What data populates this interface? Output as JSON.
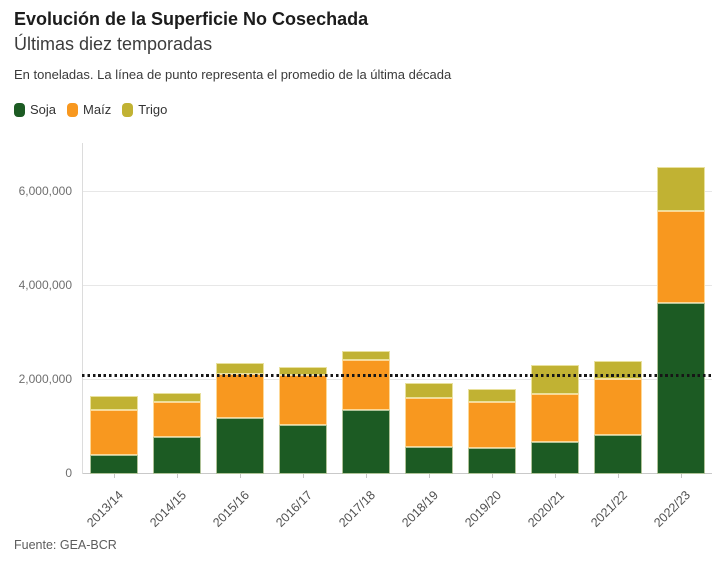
{
  "header": {
    "title": "Evolución de la Superficie No Cosechada",
    "subtitle": "Últimas diez temporadas",
    "description": "En toneladas. La línea de punto representa el promedio de la última década"
  },
  "legend": {
    "items": [
      {
        "label": "Soja",
        "color": "#1c5b23"
      },
      {
        "label": "Maíz",
        "color": "#f8981f"
      },
      {
        "label": "Trigo",
        "color": "#c1b233"
      }
    ]
  },
  "footer": {
    "source": "Fuente: GEA-BCR"
  },
  "colors": {
    "soja": "#1c5b23",
    "maiz": "#f8981f",
    "trigo": "#c1b233",
    "average_line": "#161616",
    "gridline": "#e7e7e7"
  },
  "chart_data": {
    "type": "bar",
    "stacked": true,
    "title": "Evolución de la Superficie No Cosechada",
    "subtitle": "Últimas diez temporadas",
    "units": "toneladas",
    "categories": [
      "2013/14",
      "2014/15",
      "2015/16",
      "2016/17",
      "2017/18",
      "2018/19",
      "2019/20",
      "2020/21",
      "2021/22",
      "2022/23"
    ],
    "series": [
      {
        "name": "Soja",
        "color": "#1c5b23",
        "values": [
          400000,
          790000,
          1190000,
          1040000,
          1350000,
          580000,
          550000,
          690000,
          830000,
          3630000
        ]
      },
      {
        "name": "Maíz",
        "color": "#f8981f",
        "values": [
          970000,
          750000,
          935000,
          1060000,
          1070000,
          1030000,
          985000,
          1020000,
          1200000,
          1970000
        ]
      },
      {
        "name": "Trigo",
        "color": "#c1b233",
        "values": [
          290000,
          175000,
          230000,
          165000,
          200000,
          320000,
          280000,
          600000,
          375000,
          930000
        ]
      }
    ],
    "totals": [
      1660000,
      1715000,
      2355000,
      2265000,
      2620000,
      1930000,
      1815000,
      2310000,
      2405000,
      6530000
    ],
    "average_line": 2090000,
    "average_line_label": "promedio de la última década",
    "yticks": [
      0,
      2000000,
      4000000,
      6000000
    ],
    "ytick_labels": [
      "0",
      "2,000,000",
      "4,000,000",
      "6,000,000"
    ],
    "ylim": [
      0,
      7035000
    ],
    "xlabel": "",
    "ylabel": "",
    "grid": true,
    "legend_position": "top"
  }
}
